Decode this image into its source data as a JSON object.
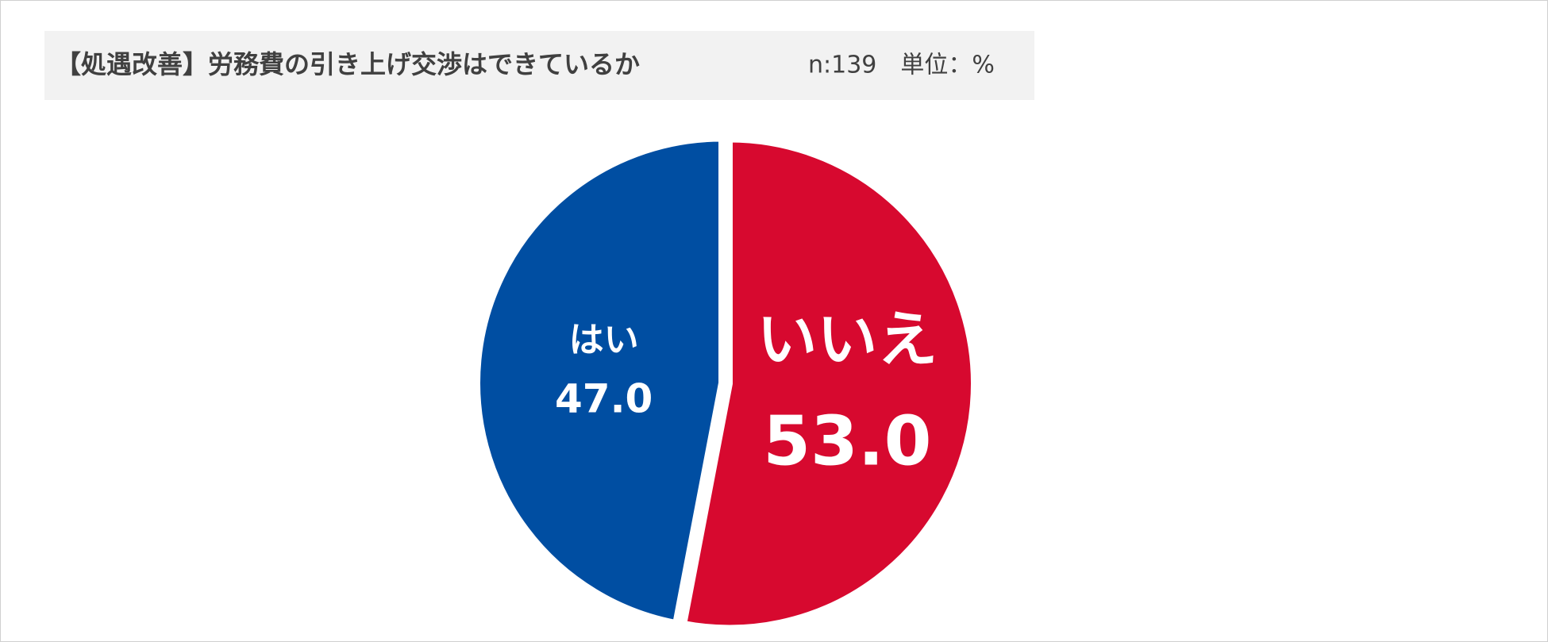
{
  "chart_data": {
    "type": "pie",
    "title": "【処遇改善】労務費の引き上げ交渉はできているか",
    "subtitle": "n:139　単位：%",
    "categories": [
      "はい",
      "いいえ"
    ],
    "values": [
      47.0,
      53.0
    ],
    "value_labels": [
      "47.0",
      "53.0"
    ],
    "colors": [
      "#004ea2",
      "#d7092f"
    ]
  }
}
